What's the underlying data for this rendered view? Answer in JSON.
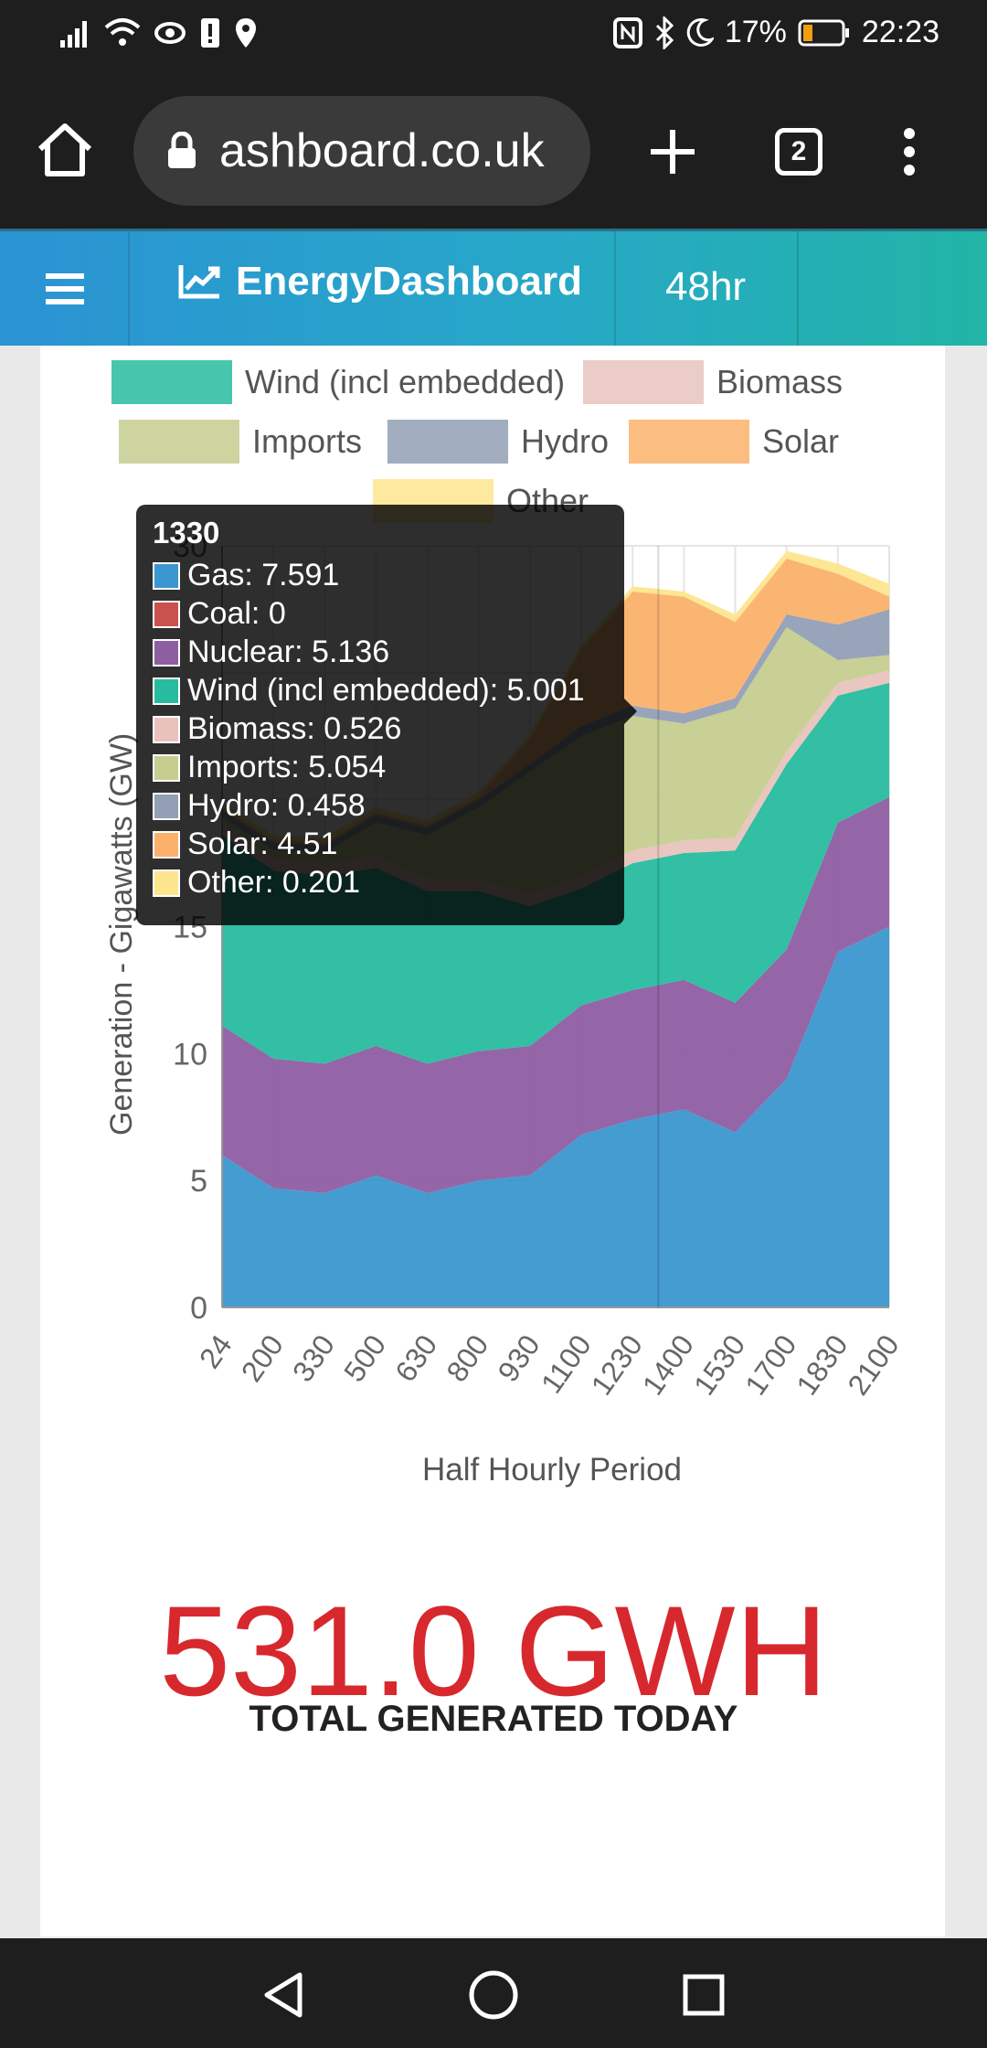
{
  "status": {
    "battery": "17%",
    "time": "22:23"
  },
  "browser": {
    "url": "ashboard.co.uk",
    "tab_count": "2"
  },
  "app": {
    "brand": "EnergyDashboard",
    "range": "48hr"
  },
  "chart_data": {
    "type": "area",
    "stacked": true,
    "ylabel": "Generation - Gigawatts (GW)",
    "xlabel": "Half Hourly Period",
    "ylim": [
      0,
      30
    ],
    "yticks": [
      "0",
      "5",
      "10",
      "15",
      "30"
    ],
    "categories": [
      "24",
      "200",
      "330",
      "500",
      "630",
      "800",
      "930",
      "1100",
      "1230",
      "1400",
      "1530",
      "1700",
      "1830",
      "2100"
    ],
    "legend_visible": [
      "Wind (incl embedded)",
      "Biomass",
      "Imports",
      "Hydro",
      "Solar",
      "Other"
    ],
    "series": [
      {
        "name": "Gas",
        "color": "#3a97cf",
        "values": [
          6.0,
          4.7,
          4.5,
          5.2,
          4.5,
          5.0,
          5.2,
          6.8,
          7.4,
          7.8,
          6.9,
          9.0,
          14.0,
          15.0
        ]
      },
      {
        "name": "Coal",
        "color": "#c9524f",
        "values": [
          0,
          0,
          0,
          0,
          0,
          0,
          0,
          0,
          0,
          0,
          0,
          0,
          0,
          0
        ]
      },
      {
        "name": "Nuclear",
        "color": "#8e5ea2",
        "values": [
          5.1,
          5.1,
          5.1,
          5.1,
          5.1,
          5.1,
          5.1,
          5.1,
          5.1,
          5.1,
          5.1,
          5.1,
          5.1,
          5.1
        ]
      },
      {
        "name": "Wind (incl embedded)",
        "color": "#27bc9f",
        "values": [
          7.5,
          7.4,
          7.4,
          7.0,
          6.8,
          6.3,
          5.5,
          4.6,
          5.0,
          5.0,
          6.0,
          7.3,
          5.0,
          4.5
        ]
      },
      {
        "name": "Biomass",
        "color": "#e8c3bc",
        "values": [
          0.5,
          0.5,
          0.5,
          0.5,
          0.5,
          0.5,
          0.5,
          0.5,
          0.5,
          0.5,
          0.5,
          0.5,
          0.5,
          0.5
        ]
      },
      {
        "name": "Imports",
        "color": "#c5cd8f",
        "values": [
          0.2,
          0.3,
          0.4,
          1.3,
          1.7,
          2.8,
          4.8,
          5.5,
          5.3,
          4.6,
          5.1,
          4.9,
          0.9,
          0.6
        ]
      },
      {
        "name": "Hydro",
        "color": "#929fb5",
        "values": [
          0.3,
          0.3,
          0.3,
          0.3,
          0.3,
          0.3,
          0.3,
          0.4,
          0.4,
          0.4,
          0.4,
          0.5,
          1.4,
          1.8
        ]
      },
      {
        "name": "Solar",
        "color": "#fbb16b",
        "values": [
          0.1,
          0.1,
          0.1,
          0.1,
          0.1,
          0.1,
          1.0,
          3.0,
          4.5,
          4.6,
          3.0,
          2.2,
          2.0,
          0.5
        ]
      },
      {
        "name": "Other",
        "color": "#fde58e",
        "values": [
          0.2,
          0.2,
          0.2,
          0.2,
          0.2,
          0.2,
          0.2,
          0.2,
          0.2,
          0.2,
          0.3,
          0.3,
          0.4,
          0.5
        ]
      }
    ]
  },
  "tooltip": {
    "title": "1330",
    "rows": [
      {
        "label": "Gas: 7.591",
        "color": "#3a97cf"
      },
      {
        "label": "Coal: 0",
        "color": "#c9524f"
      },
      {
        "label": "Nuclear: 5.136",
        "color": "#8e5ea2"
      },
      {
        "label": "Wind (incl embedded): 5.001",
        "color": "#27bc9f"
      },
      {
        "label": "Biomass: 0.526",
        "color": "#e8c3bc"
      },
      {
        "label": "Imports: 5.054",
        "color": "#c5cd8f"
      },
      {
        "label": "Hydro: 0.458",
        "color": "#929fb5"
      },
      {
        "label": "Solar: 4.51",
        "color": "#fbb16b"
      },
      {
        "label": "Other: 0.201",
        "color": "#fde58e"
      }
    ]
  },
  "summary": {
    "total": "531.0 GWH",
    "caption": "TOTAL GENERATED TODAY"
  }
}
